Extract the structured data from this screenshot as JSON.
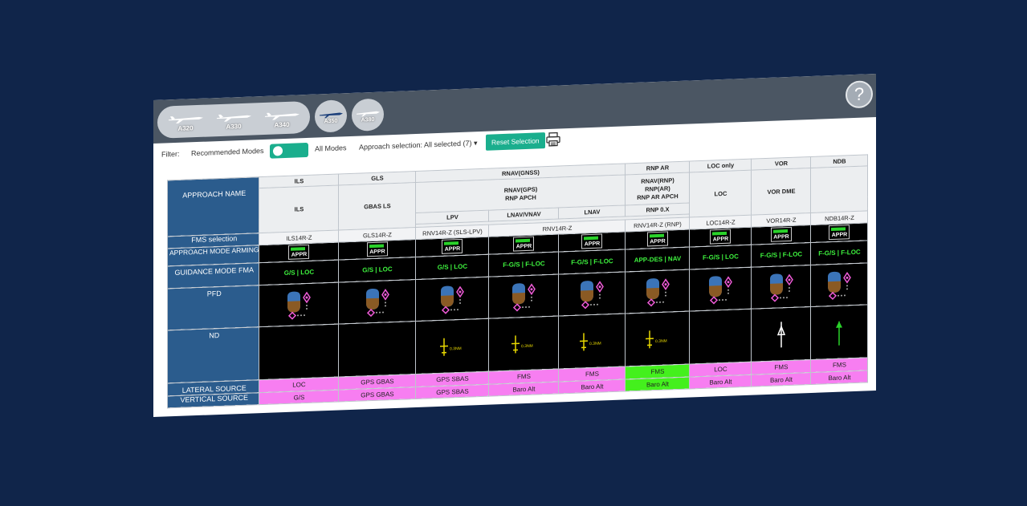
{
  "aircraft": [
    "A320",
    "A330",
    "A340",
    "A350",
    "A380"
  ],
  "help_label": "?",
  "filter": {
    "label": "Filter:",
    "recommended": "Recommended Modes",
    "all_modes": "All Modes",
    "approach_selection_label": "Approach selection:",
    "approach_selection_value": "All selected (7)",
    "reset_label": "Reset Selection"
  },
  "table": {
    "row_labels": {
      "approach_name": "APPROACH NAME",
      "fms_selection": "FMS selection",
      "mode_arming": "APPROACH MODE ARMING",
      "guidance": "GUIDANCE MODE FMA",
      "pfd": "PFD",
      "nd": "ND",
      "lateral": "LATERAL SOURCE",
      "vertical": "VERTICAL SOURCE"
    },
    "groups": [
      "ILS",
      "GLS",
      "RNAV(GNSS)",
      "RNP AR",
      "LOC only",
      "VOR",
      "NDB"
    ],
    "subgroups": [
      "ILS",
      "GBAS LS",
      "RNAV(GPS)\nRNP APCH",
      "RNAV(RNP)\nRNP(AR)\nRNP AR APCH",
      "LOC",
      "VOR DME",
      ""
    ],
    "variants": [
      "LPV",
      "LNAV/VNAV",
      "LNAV",
      "RNP 0.X"
    ],
    "fms": [
      "ILS14R-Z",
      "GLS14R-Z",
      "RNV14R-Z (SLS-LPV)",
      "RNV14R-Z",
      "RNV14R-Z (RNP)",
      "LOC14R-Z",
      "VOR14R-Z",
      "NDB14R-Z"
    ],
    "appr_label": "APPR",
    "fma": [
      "G/S | LOC",
      "G/S | LOC",
      "G/S | LOC",
      "F-G/S | F-LOC",
      "F-G/S | F-LOC",
      "APP-DES | NAV",
      "F-G/S | LOC",
      "F-G/S | F-LOC",
      "F-G/S | F-LOC"
    ],
    "lateral": [
      "LOC",
      "GPS GBAS",
      "GPS SBAS",
      "FMS",
      "FMS",
      "FMS",
      "LOC",
      "FMS",
      "FMS"
    ],
    "vertical": [
      "G/S",
      "GPS GBAS",
      "GPS SBAS",
      "Baro Alt",
      "Baro Alt",
      "Baro Alt",
      "Baro Alt",
      "Baro Alt",
      "Baro Alt"
    ],
    "nd_scale": "0.3NM"
  },
  "colors": {
    "accent": "#1aae8d",
    "header_blue": "#2b5c8d",
    "source_magenta": "#f77ef1",
    "source_green": "#44f01d",
    "fma_green": "#3ef23e"
  }
}
